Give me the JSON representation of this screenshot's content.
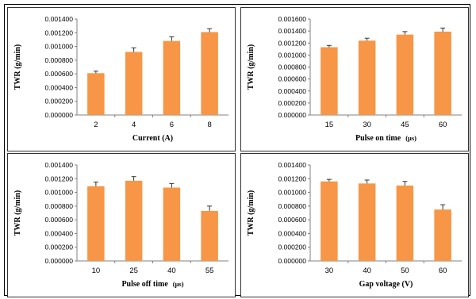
{
  "colors": {
    "bar": "#F79646",
    "error": "#333333",
    "axis": "#808080"
  },
  "chart_data": [
    {
      "type": "bar",
      "categories": [
        "2",
        "4",
        "6",
        "8"
      ],
      "values": [
        0.00061,
        0.00092,
        0.00108,
        0.00121
      ],
      "errors": [
        3e-05,
        6e-05,
        6e-05,
        5e-05
      ],
      "xlabel": "Current (A)",
      "xunit": "",
      "ylabel": "TWR (g/min)",
      "ylim": [
        0,
        0.0014
      ],
      "yticks": [
        "0.000000",
        "0.000200",
        "0.000400",
        "0.000600",
        "0.000800",
        "0.001000",
        "0.001200",
        "0.001400"
      ],
      "grid": false
    },
    {
      "type": "bar",
      "categories": [
        "15",
        "30",
        "45",
        "60"
      ],
      "values": [
        0.00113,
        0.00124,
        0.00134,
        0.00139
      ],
      "errors": [
        3e-05,
        4e-05,
        5e-05,
        6e-05
      ],
      "xlabel": "Pulse on time",
      "xunit": "(μs)",
      "ylabel": "TWR (g/min)",
      "ylim": [
        0,
        0.0016
      ],
      "yticks": [
        "0.000000",
        "0.000200",
        "0.000400",
        "0.000600",
        "0.000800",
        "0.001000",
        "0.001200",
        "0.001400",
        "0.001600"
      ],
      "grid": false
    },
    {
      "type": "bar",
      "categories": [
        "10",
        "25",
        "40",
        "55"
      ],
      "values": [
        0.00109,
        0.00117,
        0.00107,
        0.00073
      ],
      "errors": [
        6e-05,
        6e-05,
        6e-05,
        7e-05
      ],
      "xlabel": "Pulse off time",
      "xunit": "(μs)",
      "ylabel": "TWR (g/min)",
      "ylim": [
        0,
        0.0014
      ],
      "yticks": [
        "0.000000",
        "0.000200",
        "0.000400",
        "0.000600",
        "0.000800",
        "0.001000",
        "0.001200",
        "0.001400"
      ],
      "grid": false
    },
    {
      "type": "bar",
      "categories": [
        "30",
        "40",
        "50",
        "60"
      ],
      "values": [
        0.00116,
        0.00113,
        0.0011,
        0.00075
      ],
      "errors": [
        3e-05,
        5e-05,
        6e-05,
        7e-05
      ],
      "xlabel": "Gap voltage (V)",
      "xunit": "",
      "ylabel": "TWR (g/min)",
      "ylim": [
        0,
        0.0014
      ],
      "yticks": [
        "0.000000",
        "0.000200",
        "0.000400",
        "0.000600",
        "0.000800",
        "0.001000",
        "0.001200",
        "0.001400"
      ],
      "grid": false
    }
  ]
}
